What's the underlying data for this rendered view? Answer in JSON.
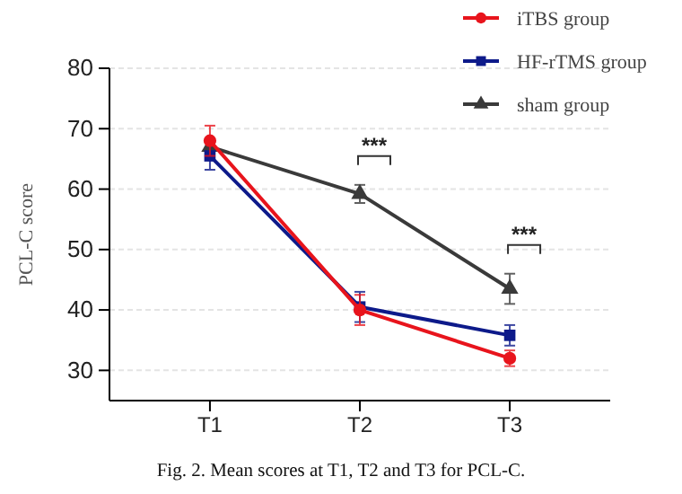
{
  "chart_data": {
    "type": "line",
    "title": "Fig. 2. Mean scores at T1, T2 and T3 for PCL-C.",
    "ylabel": "PCL-C score",
    "categories": [
      "T1",
      "T2",
      "T3"
    ],
    "series": [
      {
        "name": "iTBS group",
        "color": "#e8141c",
        "marker": "circle",
        "values": [
          68,
          40,
          32
        ],
        "errors": [
          2.5,
          2.5,
          1.3
        ]
      },
      {
        "name": "HF-rTMS group",
        "color": "#0d1a8a",
        "marker": "square",
        "values": [
          65.5,
          40.5,
          35.8
        ],
        "errors": [
          2.3,
          2.5,
          1.7
        ]
      },
      {
        "name": "sham group",
        "color": "#3a3a3a",
        "marker": "triangle",
        "values": [
          67,
          59.2,
          43.5
        ],
        "errors": [
          null,
          1.5,
          2.5
        ]
      }
    ],
    "ylim": [
      25,
      80
    ],
    "yticks": [
      30,
      40,
      50,
      60,
      70,
      80
    ],
    "grid": "y",
    "legend": "top right",
    "annotations": [
      "***",
      "***"
    ]
  }
}
